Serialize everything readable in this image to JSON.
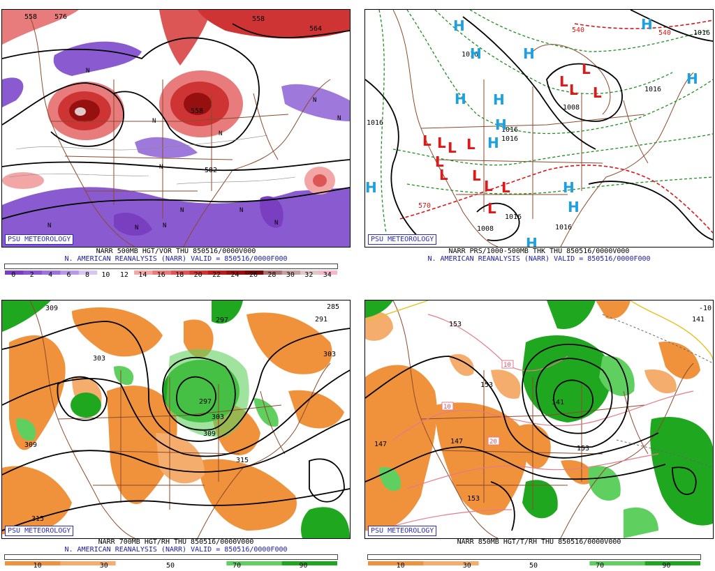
{
  "brand": "PSU METEOROLOGY",
  "panels": [
    {
      "id": "p500",
      "caption1": "NARR 500MB HGT/VOR THU 850516/0000V000",
      "caption2": "N. AMERICAN REANALYSIS (NARR) VALID = 850516/0000F000",
      "contour_labels": [
        "558",
        "576",
        "558",
        "582",
        "558",
        "564"
      ],
      "markers": [
        "N",
        "N",
        "N",
        "N",
        "N",
        "N",
        "N",
        "N",
        "N",
        "N",
        "N",
        "N"
      ],
      "colorbar": {
        "ticks": [
          "0",
          "2",
          "4",
          "6",
          "8",
          "10",
          "12",
          "14",
          "16",
          "18",
          "20",
          "22",
          "24",
          "26",
          "28",
          "30",
          "32",
          "34"
        ],
        "colors": [
          "#7a3fc0",
          "#8a55cf",
          "#9c73da",
          "#b79ae6",
          "#d6c6f0",
          "#ffffff",
          "#ffffff",
          "#f2a6a6",
          "#e87b7b",
          "#dc5656",
          "#cf3434",
          "#b81d1d",
          "#961010",
          "#720808",
          "#a87070",
          "#c4a0a0",
          "#e0c8c8",
          "#f4b8c8"
        ]
      }
    },
    {
      "id": "pprs",
      "caption1": "NARR PRS/1000-500MB THK THU 850516/0000V000",
      "caption2": "N. AMERICAN REANALYSIS (NARR) VALID = 850516/0000F000",
      "contour_labels": [
        "540",
        "540",
        "1016",
        "1016",
        "1016",
        "1008",
        "1016",
        "1016",
        "1016",
        "1016",
        "570",
        "1008",
        "1016"
      ],
      "highs": [
        "H",
        "H",
        "H",
        "H",
        "H",
        "H",
        "H",
        "H",
        "H",
        "H",
        "H",
        "H",
        "H"
      ],
      "lows": [
        "L",
        "L",
        "L",
        "L",
        "L",
        "L",
        "L",
        "L",
        "L",
        "L",
        "L",
        "L",
        "L",
        "L"
      ]
    },
    {
      "id": "p700",
      "caption1": "NARR 700MB HGT/RH THU 850516/0000V000",
      "caption2": "N. AMERICAN REANALYSIS (NARR) VALID = 850516/0000F000",
      "contour_labels": [
        "309",
        "303",
        "297",
        "291",
        "285",
        "303",
        "297",
        "303",
        "309",
        "309",
        "315",
        "315"
      ],
      "colorbar": {
        "ticks": [
          "10",
          "30",
          "50",
          "70",
          "90"
        ],
        "colors": [
          "#f0923c",
          "#f4ad6c",
          "#ffffff",
          "#ffffff",
          "#5fd05f",
          "#1fa81f"
        ]
      }
    },
    {
      "id": "p850",
      "caption1": "NARR 850MB HGT/T/RH THU 850516/0000V000",
      "caption2": "",
      "contour_labels": [
        "153",
        "153",
        "141",
        "147",
        "147",
        "153",
        "153",
        "141",
        "-10"
      ],
      "temp_labels": [
        "10",
        "10",
        "20"
      ],
      "colorbar": {
        "ticks": [
          "10",
          "30",
          "50",
          "70",
          "90"
        ],
        "colors": [
          "#f0923c",
          "#f4ad6c",
          "#ffffff",
          "#ffffff",
          "#5fd05f",
          "#1fa81f"
        ]
      }
    }
  ]
}
